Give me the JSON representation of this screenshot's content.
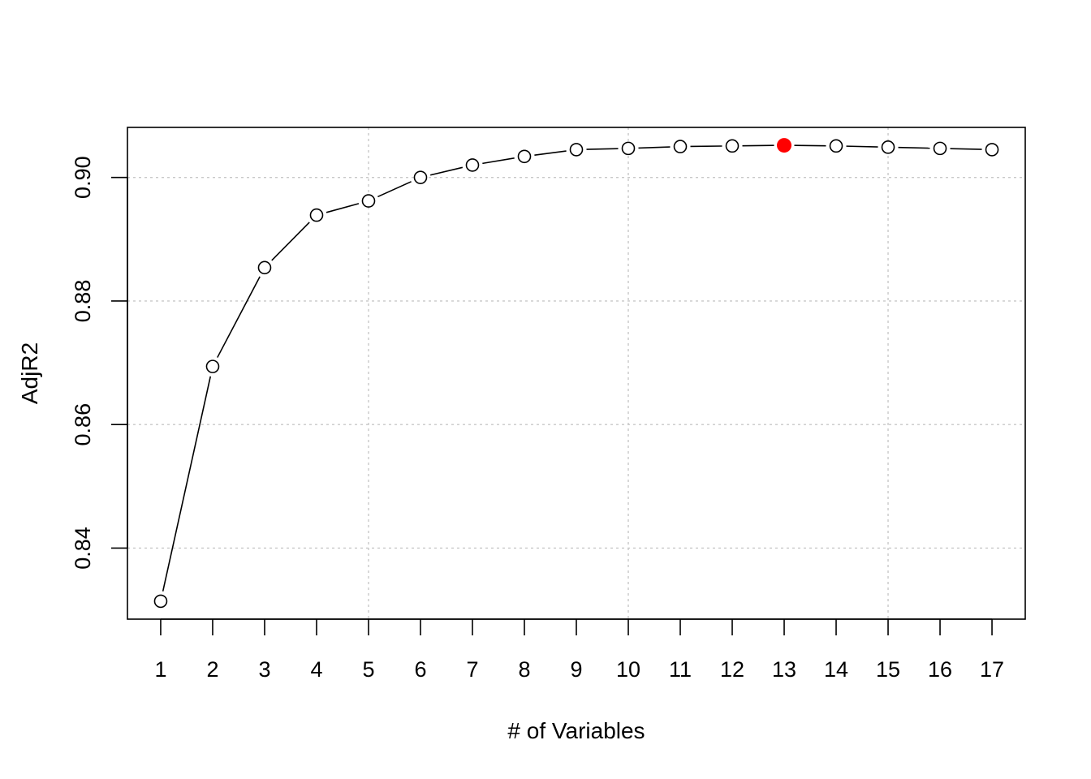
{
  "chart_data": {
    "type": "line",
    "title": "",
    "xlabel": "# of Variables",
    "ylabel": "AdjR2",
    "x": [
      1,
      2,
      3,
      4,
      5,
      6,
      7,
      8,
      9,
      10,
      11,
      12,
      13,
      14,
      15,
      16,
      17
    ],
    "series": [
      {
        "values": [
          0.8314,
          0.8694,
          0.8854,
          0.8939,
          0.8962,
          0.9,
          0.902,
          0.9034,
          0.9045,
          0.9047,
          0.905,
          0.9051,
          0.9052,
          0.9051,
          0.9049,
          0.9047,
          0.9045
        ]
      }
    ],
    "highlight": {
      "x": 13,
      "value": 0.9052,
      "color": "#ff0000"
    },
    "xticks": [
      "1",
      "2",
      "3",
      "4",
      "5",
      "6",
      "7",
      "8",
      "9",
      "10",
      "11",
      "12",
      "13",
      "14",
      "15",
      "16",
      "17"
    ],
    "yticks": [
      "0.84",
      "0.86",
      "0.88",
      "0.90"
    ],
    "xgrid": [
      5,
      10,
      15
    ],
    "ygrid": [
      0.84,
      0.86,
      0.88,
      0.9
    ],
    "xlim": [
      0.36,
      17.64
    ],
    "ylim": [
      0.8285,
      0.9081
    ],
    "grid": true,
    "legend": "none",
    "colors": {
      "line": "#000000",
      "point_fill": "#ffffff",
      "grid": "#c8c8c8"
    }
  }
}
